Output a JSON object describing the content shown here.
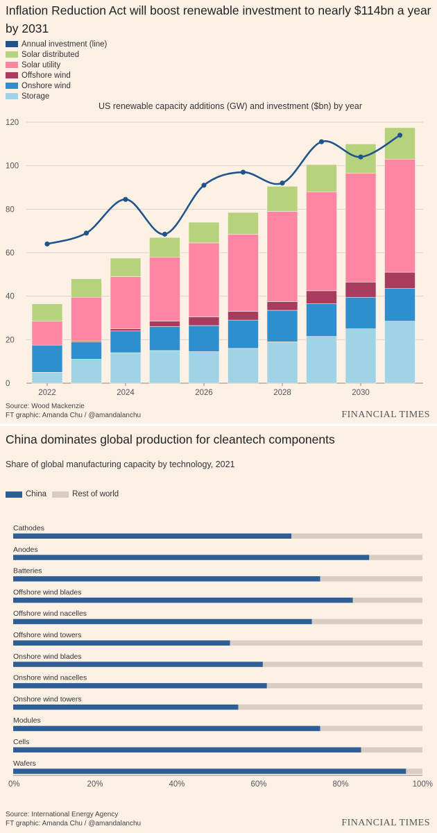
{
  "chart_data": [
    {
      "type": "bar",
      "title": "Inflation Reduction Act will boost renewable investment to nearly $114bn a year by 2031",
      "subtitle": "US renewable capacity additions (GW) and investment ($bn) by year",
      "xlabel": "",
      "ylabel": "",
      "ylim": [
        0,
        120
      ],
      "yticks": [
        "0",
        "20",
        "40",
        "60",
        "80",
        "100",
        "120"
      ],
      "xtick_labels": [
        "2022",
        "2024",
        "2026",
        "2028",
        "2030"
      ],
      "categories": [
        "2022",
        "2023",
        "2024",
        "2025",
        "2026",
        "2027",
        "2028",
        "2029",
        "2030",
        "2031"
      ],
      "series": [
        {
          "name": "Storage",
          "color": "#9fd4e6",
          "values": [
            5,
            11,
            14,
            15,
            14.5,
            16,
            19,
            21.5,
            25,
            28.5
          ]
        },
        {
          "name": "Onshore wind",
          "color": "#2e8ece",
          "values": [
            12.5,
            8,
            10,
            11,
            12,
            13,
            14.5,
            15,
            14.5,
            15
          ]
        },
        {
          "name": "Offshore wind",
          "color": "#a83c5f",
          "values": [
            0,
            0.5,
            1,
            2.5,
            4,
            4,
            4,
            6,
            7,
            7.5
          ]
        },
        {
          "name": "Solar utility",
          "color": "#ff85a2",
          "values": [
            11,
            20,
            24,
            29.5,
            34,
            35.5,
            41.5,
            45.5,
            50,
            52
          ]
        },
        {
          "name": "Solar distributed",
          "color": "#b7d27c",
          "values": [
            8,
            8.5,
            8.5,
            9,
            9.5,
            10,
            11.5,
            12.5,
            13.5,
            14.5
          ]
        }
      ],
      "line_series": {
        "name": "Annual investment (line)",
        "color": "#21548a",
        "values": [
          64,
          69,
          84.5,
          68.5,
          91,
          97,
          92,
          111,
          104,
          114
        ]
      },
      "legend": [
        "Annual investment (line)",
        "Solar distributed",
        "Solar utility",
        "Offshore wind",
        "Onshore wind",
        "Storage"
      ],
      "source": "Source: Wood Mackenzie",
      "credit": "FT graphic: Amanda Chu / @amandalanchu",
      "brand": "FINANCIAL TIMES"
    },
    {
      "type": "bar",
      "orientation": "horizontal",
      "title": "China dominates global production for cleantech components",
      "subtitle": "Share of global manufacturing capacity by technology, 2021",
      "xlim": [
        0,
        100
      ],
      "xticks": [
        "0%",
        "20%",
        "40%",
        "60%",
        "80%",
        "100%"
      ],
      "categories": [
        "Cathodes",
        "Anodes",
        "Batteries",
        "Offshore wind blades",
        "Offshore wind nacelles",
        "Offshore wind towers",
        "Onshore wind blades",
        "Onshore wind nacelles",
        "Onshore wind towers",
        "Modules",
        "Cells",
        "Wafers"
      ],
      "series": [
        {
          "name": "China",
          "color": "#2d5e95",
          "values": [
            68,
            87,
            75,
            83,
            73,
            53,
            61,
            62,
            55,
            75,
            85,
            96
          ]
        },
        {
          "name": "Rest of world",
          "color": "#d9cdc3",
          "values": [
            32,
            13,
            25,
            17,
            27,
            47,
            39,
            38,
            45,
            25,
            15,
            4
          ]
        }
      ],
      "legend": [
        "China",
        "Rest of world"
      ],
      "source": "Source: International Energy Agency",
      "credit": "FT graphic: Amanda Chu / @amandalanchu",
      "brand": "FINANCIAL TIMES"
    }
  ]
}
